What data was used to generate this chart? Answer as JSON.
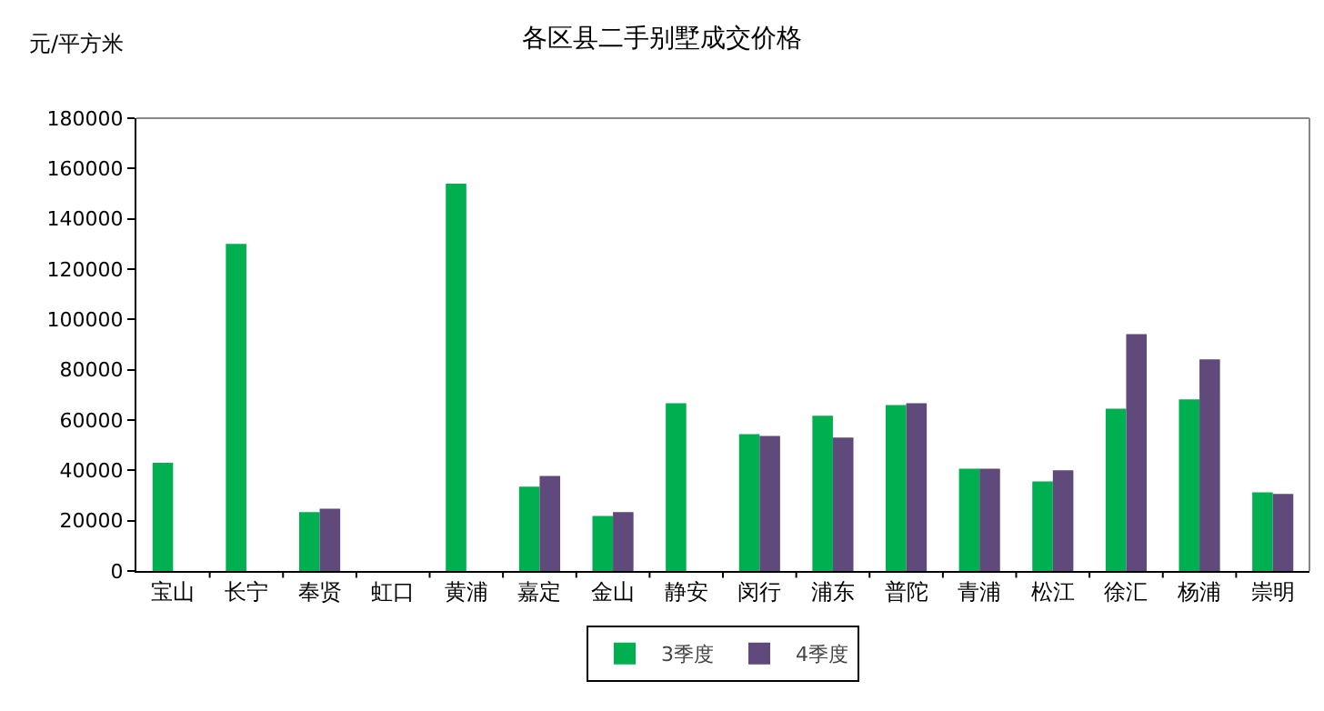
{
  "chart_data": {
    "type": "bar",
    "title": "各区县二手别墅成交价格",
    "ylabel": "元/平方米",
    "categories": [
      "宝山",
      "长宁",
      "奉贤",
      "虹口",
      "黄浦",
      "嘉定",
      "金山",
      "静安",
      "闵行",
      "浦东",
      "普陀",
      "青浦",
      "松江",
      "徐汇",
      "杨浦",
      "崇明"
    ],
    "series": [
      {
        "name": "3季度",
        "color": "#00b050",
        "values": [
          43000,
          130000,
          23400,
          null,
          154000,
          33500,
          21900,
          66700,
          54400,
          61700,
          66000,
          40700,
          35600,
          64500,
          68200,
          31300
        ]
      },
      {
        "name": "4季度",
        "color": "#604a7b",
        "values": [
          null,
          null,
          24800,
          null,
          null,
          37800,
          23400,
          null,
          53700,
          53000,
          66700,
          40700,
          40000,
          94200,
          84100,
          30600
        ]
      }
    ],
    "ylim": [
      0,
      180000
    ],
    "yticks": [
      0,
      20000,
      40000,
      60000,
      80000,
      100000,
      120000,
      140000,
      160000,
      180000
    ],
    "grid": false,
    "legend": "bottom"
  }
}
